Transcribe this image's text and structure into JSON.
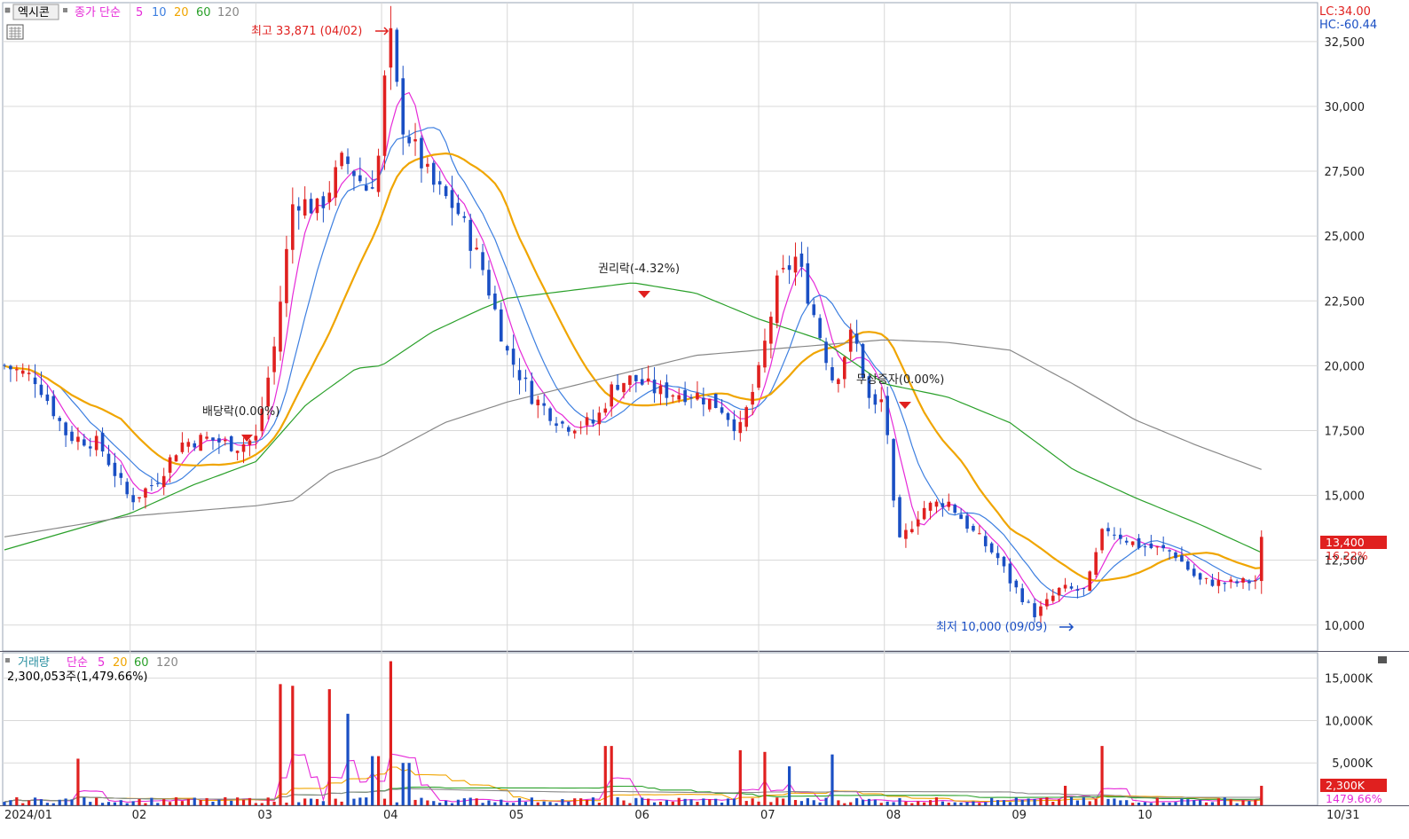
{
  "header": {
    "title": "엑시콘",
    "indicator_label": "종가 단순",
    "ma_periods": [
      "5",
      "10",
      "20",
      "60",
      "120"
    ],
    "lc_label": "LC:34.00",
    "hc_label": "HC:-60.44"
  },
  "volume_header": {
    "label": "거래량",
    "ma_label": "단순",
    "ma_periods": [
      "5",
      "20",
      "60",
      "120"
    ],
    "value_label": "2,300,053주(1,479.66%)"
  },
  "colors": {
    "up": "#e0201f",
    "down": "#1a4fc4",
    "ma5": "#e62ad8",
    "ma10": "#3d7fe0",
    "ma20": "#f0a500",
    "ma60": "#2aa02a",
    "ma120": "#888888",
    "grid": "#d8d8d8",
    "axis_text": "#222222"
  },
  "annotations": {
    "high": "최고 33,871 (04/02)",
    "low": "최저 10,000 (09/09)",
    "dividend": "배당락(0.00%)",
    "rights": "권리락(-4.32%)",
    "capital_increase": "무상증자(0.00%)",
    "last_price": "13,400",
    "last_change": "16.22%",
    "last_volume": "2,300K",
    "last_volume_pct": "1479.66%"
  },
  "chart_data": [
    {
      "type": "candlestick",
      "title": "엑시콘",
      "ylim": [
        9000,
        34000
      ],
      "y_ticks": [
        "10,000",
        "12,500",
        "15,000",
        "17,500",
        "20,000",
        "22,500",
        "25,000",
        "27,500",
        "30,000",
        "32,500"
      ],
      "y_tick_values": [
        10000,
        12500,
        15000,
        17500,
        20000,
        22500,
        25000,
        27500,
        30000,
        32500
      ],
      "x_labels": [
        "2024/01",
        "02",
        "03",
        "04",
        "05",
        "06",
        "07",
        "08",
        "09",
        "10",
        "10/31"
      ],
      "x_label_months": [
        0,
        1,
        2,
        3,
        4,
        5,
        6,
        7,
        8,
        9,
        10
      ],
      "months_end": 10,
      "month_anchors": [
        [
          0,
          20000
        ],
        [
          0.25,
          19500
        ],
        [
          0.5,
          17300
        ],
        [
          0.75,
          17000
        ],
        [
          1,
          14800
        ],
        [
          1.2,
          15500
        ],
        [
          1.4,
          17000
        ],
        [
          1.6,
          17200
        ],
        [
          1.85,
          16900
        ],
        [
          2,
          17200
        ],
        [
          2.15,
          20800
        ],
        [
          2.3,
          26500
        ],
        [
          2.5,
          26000
        ],
        [
          2.7,
          28000
        ],
        [
          2.9,
          26700
        ],
        [
          3,
          28500
        ],
        [
          3.05,
          33500
        ],
        [
          3.15,
          29500
        ],
        [
          3.4,
          27000
        ],
        [
          3.6,
          26000
        ],
        [
          3.8,
          23800
        ],
        [
          4,
          20500
        ],
        [
          4.2,
          18800
        ],
        [
          4.45,
          17700
        ],
        [
          4.7,
          17800
        ],
        [
          4.85,
          19300
        ],
        [
          5,
          19500
        ],
        [
          5.2,
          19000
        ],
        [
          5.5,
          18900
        ],
        [
          5.7,
          18400
        ],
        [
          5.85,
          17500
        ],
        [
          6,
          19700
        ],
        [
          6.15,
          23200
        ],
        [
          6.3,
          24200
        ],
        [
          6.45,
          21800
        ],
        [
          6.6,
          19300
        ],
        [
          6.75,
          21400
        ],
        [
          6.9,
          18200
        ],
        [
          7,
          18800
        ],
        [
          7.1,
          13000
        ],
        [
          7.3,
          14500
        ],
        [
          7.5,
          14800
        ],
        [
          7.7,
          13600
        ],
        [
          7.9,
          12600
        ],
        [
          8,
          11700
        ],
        [
          8.2,
          10400
        ],
        [
          8.4,
          11400
        ],
        [
          8.6,
          11300
        ],
        [
          8.75,
          13800
        ],
        [
          9,
          13100
        ],
        [
          9.3,
          12800
        ],
        [
          9.5,
          11700
        ],
        [
          9.75,
          11600
        ],
        [
          9.95,
          11700
        ],
        [
          10,
          13400
        ]
      ],
      "ma_series": [
        {
          "name": "5",
          "period": 5
        },
        {
          "name": "10",
          "period": 10
        },
        {
          "name": "20",
          "period": 20
        },
        {
          "name": "60",
          "period": 60,
          "anchors": [
            [
              0,
              12900
            ],
            [
              0.5,
              13600
            ],
            [
              1,
              14300
            ],
            [
              1.5,
              15400
            ],
            [
              2,
              16300
            ],
            [
              2.4,
              18500
            ],
            [
              2.8,
              19900
            ],
            [
              3,
              20000
            ],
            [
              3.4,
              21300
            ],
            [
              3.8,
              22200
            ],
            [
              4,
              22600
            ],
            [
              4.5,
              22900
            ],
            [
              5,
              23200
            ],
            [
              5.5,
              22800
            ],
            [
              6,
              21800
            ],
            [
              6.5,
              21000
            ],
            [
              7,
              19300
            ],
            [
              7.5,
              18800
            ],
            [
              8,
              17800
            ],
            [
              8.5,
              16000
            ],
            [
              9,
              14900
            ],
            [
              9.5,
              13900
            ],
            [
              10,
              12800
            ]
          ]
        },
        {
          "name": "120",
          "period": 120,
          "anchors": [
            [
              0,
              13400
            ],
            [
              0.5,
              13800
            ],
            [
              1,
              14200
            ],
            [
              1.5,
              14400
            ],
            [
              2,
              14600
            ],
            [
              2.3,
              14800
            ],
            [
              2.6,
              15900
            ],
            [
              3,
              16500
            ],
            [
              3.5,
              17800
            ],
            [
              4,
              18600
            ],
            [
              4.5,
              19200
            ],
            [
              5,
              19800
            ],
            [
              5.5,
              20400
            ],
            [
              6,
              20600
            ],
            [
              6.5,
              20800
            ],
            [
              7,
              21000
            ],
            [
              7.5,
              20900
            ],
            [
              8,
              20600
            ],
            [
              8.5,
              19300
            ],
            [
              9,
              17900
            ],
            [
              9.5,
              16900
            ],
            [
              10,
              16000
            ]
          ]
        }
      ],
      "high": 33871,
      "low": 10000,
      "last_close": 13400
    },
    {
      "type": "bar",
      "title": "거래량",
      "ylim": [
        0,
        18000000
      ],
      "y_ticks": [
        "5,000K",
        "10,000K",
        "15,000K"
      ],
      "y_tick_values": [
        5000000,
        10000000,
        15000000
      ],
      "spikes": [
        [
          0.6,
          5500000
        ],
        [
          2.18,
          14300000
        ],
        [
          2.3,
          14100000
        ],
        [
          2.6,
          13700000
        ],
        [
          2.72,
          10800000
        ],
        [
          2.95,
          5800000
        ],
        [
          3.08,
          17000000
        ],
        [
          3.2,
          5000000
        ],
        [
          4.8,
          7000000
        ],
        [
          5.85,
          6500000
        ],
        [
          6.05,
          6300000
        ],
        [
          6.25,
          4600000
        ],
        [
          6.6,
          6000000
        ],
        [
          8.45,
          2300000
        ],
        [
          8.75,
          7000000
        ],
        [
          10,
          2300000
        ]
      ],
      "base_volume": 600000,
      "last_volume": 2300053
    }
  ]
}
